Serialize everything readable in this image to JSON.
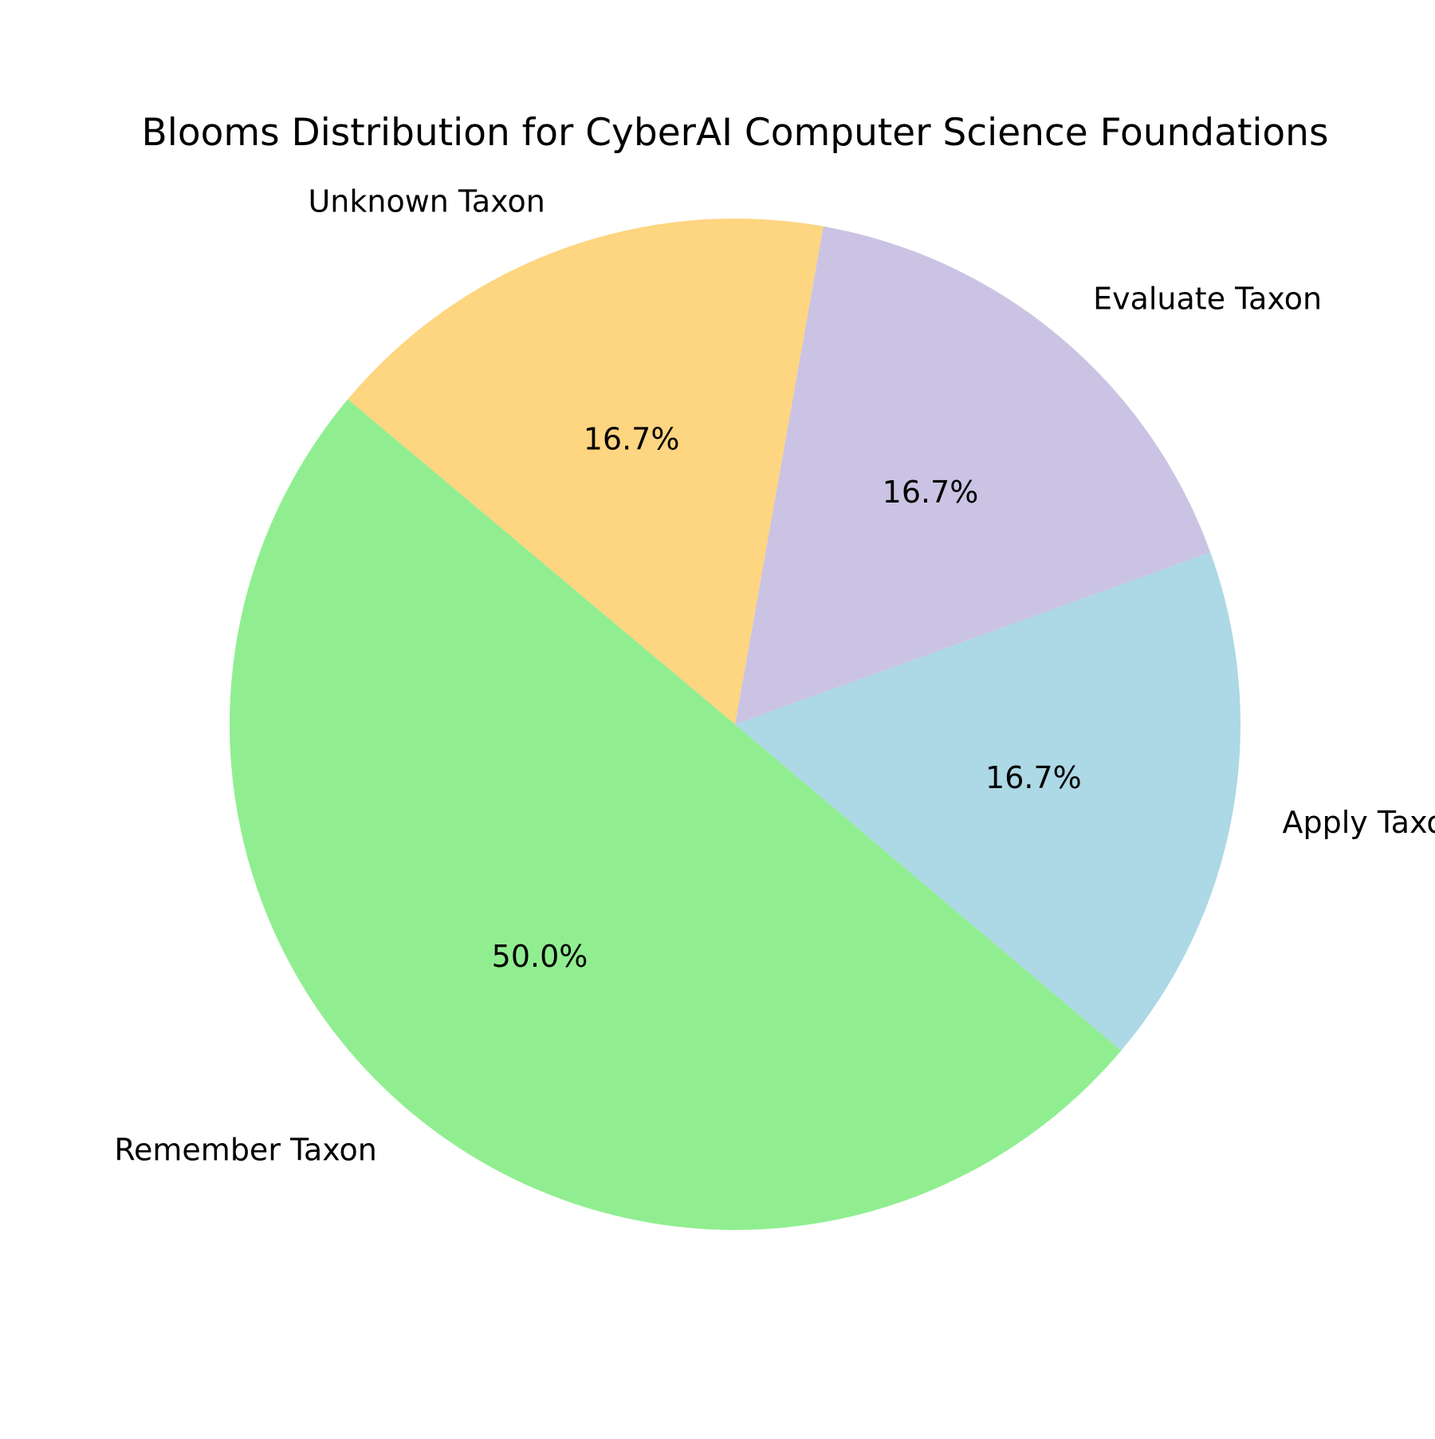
{
  "chart_data": {
    "type": "pie",
    "title": "Blooms Distribution for CyberAI Computer Science Foundations",
    "slices": [
      {
        "label": "Remember Taxon",
        "value": 50.0,
        "pct_label": "50.0%",
        "color": "#90ee90"
      },
      {
        "label": "Apply Taxon",
        "value": 16.7,
        "pct_label": "16.7%",
        "color": "#add8e6"
      },
      {
        "label": "Evaluate Taxon",
        "value": 16.7,
        "pct_label": "16.7%",
        "color": "#cbc3e3"
      },
      {
        "label": "Unknown Taxon",
        "value": 16.7,
        "pct_label": "16.7%",
        "color": "#fed580"
      }
    ],
    "direction": "counterclockwise",
    "legend": "none"
  }
}
